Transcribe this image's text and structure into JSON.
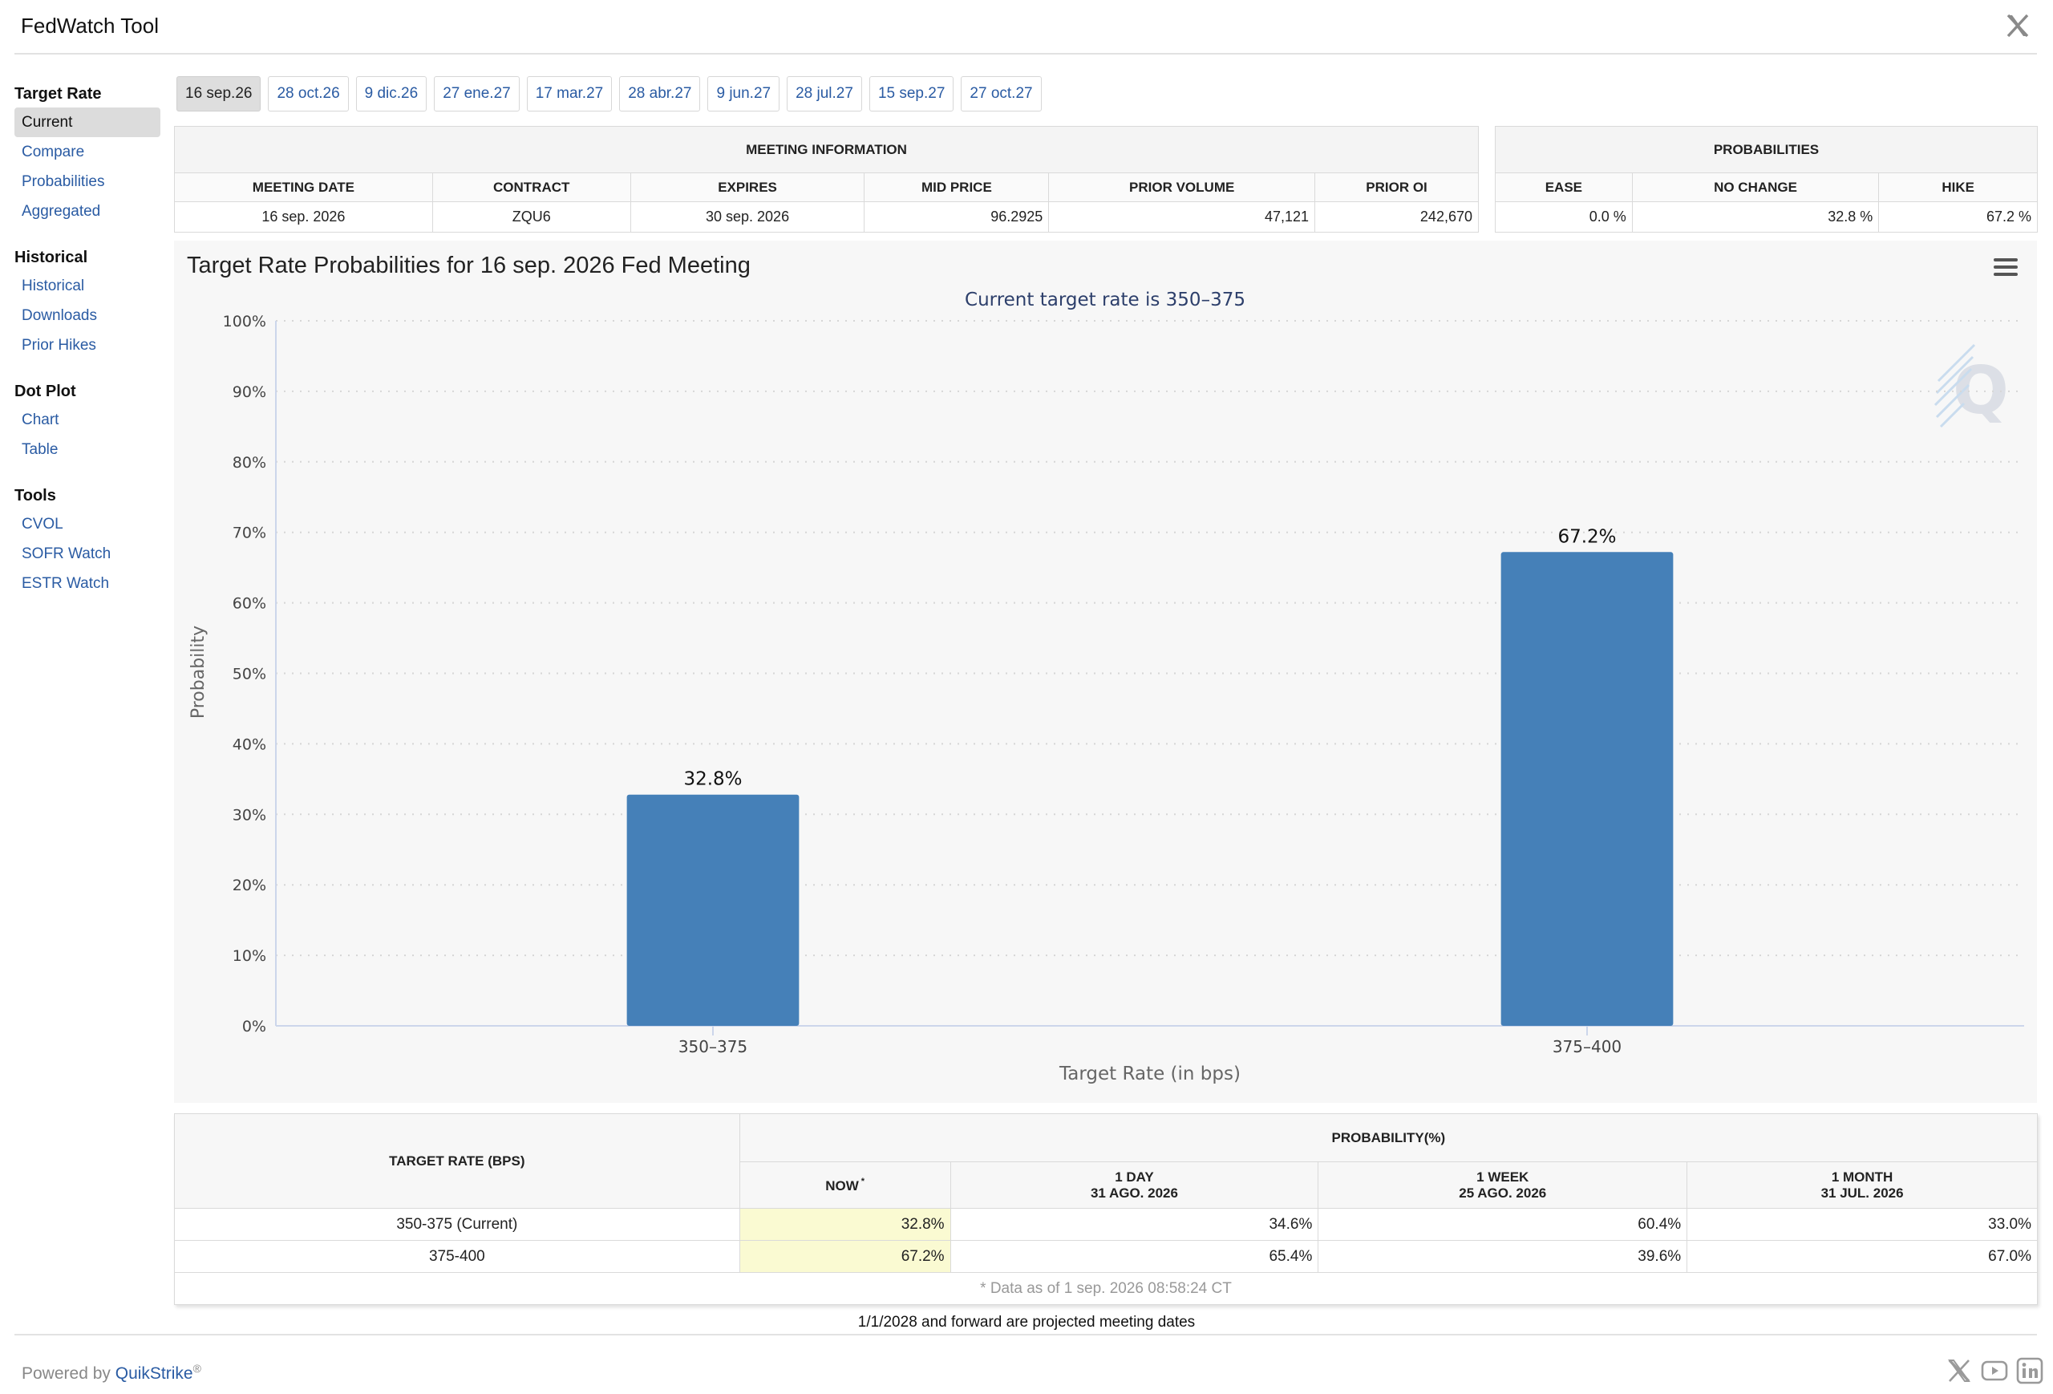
{
  "app": {
    "title": "FedWatch Tool"
  },
  "sidebar": {
    "groups": [
      {
        "title": "Target Rate",
        "items": [
          "Current",
          "Compare",
          "Probabilities",
          "Aggregated"
        ]
      },
      {
        "title": "Historical",
        "items": [
          "Historical",
          "Downloads",
          "Prior Hikes"
        ]
      },
      {
        "title": "Dot Plot",
        "items": [
          "Chart",
          "Table"
        ]
      },
      {
        "title": "Tools",
        "items": [
          "CVOL",
          "SOFR Watch",
          "ESTR Watch"
        ]
      }
    ],
    "active_item": "Current"
  },
  "tabs": [
    "16 sep.26",
    "28 oct.26",
    "9 dic.26",
    "27 ene.27",
    "17 mar.27",
    "28 abr.27",
    "9 jun.27",
    "28 jul.27",
    "15 sep.27",
    "27 oct.27"
  ],
  "meeting_info": {
    "title": "MEETING INFORMATION",
    "headers": [
      "MEETING DATE",
      "CONTRACT",
      "EXPIRES",
      "MID PRICE",
      "PRIOR VOLUME",
      "PRIOR OI"
    ],
    "values": [
      "16 sep. 2026",
      "ZQU6",
      "30 sep. 2026",
      "96.2925",
      "47,121",
      "242,670"
    ]
  },
  "probabilities": {
    "title": "PROBABILITIES",
    "headers": [
      "EASE",
      "NO CHANGE",
      "HIKE"
    ],
    "values": [
      "0.0 %",
      "32.8 %",
      "67.2 %"
    ]
  },
  "chart_data": {
    "type": "bar",
    "title": "Target Rate Probabilities for 16 sep. 2026 Fed Meeting",
    "subtitle": "Current target rate is 350–375",
    "categories": [
      "350–375",
      "375–400"
    ],
    "values": [
      32.8,
      67.2
    ],
    "data_labels": [
      "32.8%",
      "67.2%"
    ],
    "xlabel": "Target Rate (in bps)",
    "ylabel": "Probability",
    "ylim": [
      0,
      100
    ],
    "yticks": [
      "0%",
      "10%",
      "20%",
      "30%",
      "40%",
      "50%",
      "60%",
      "70%",
      "80%",
      "90%",
      "100%"
    ],
    "grid": true,
    "bar_color": "#4580b8",
    "watermark": "Q"
  },
  "history": {
    "col_target": "TARGET RATE (BPS)",
    "col_prob": "PROBABILITY(%)",
    "now": "NOW",
    "now_mark": "*",
    "periods": [
      {
        "label": "1 DAY",
        "date": "31 AGO. 2026"
      },
      {
        "label": "1 WEEK",
        "date": "25 AGO. 2026"
      },
      {
        "label": "1 MONTH",
        "date": "31 JUL. 2026"
      }
    ],
    "rows": [
      {
        "rate": "350-375 (Current)",
        "values": [
          "32.8%",
          "34.6%",
          "60.4%",
          "33.0%"
        ]
      },
      {
        "rate": "375-400",
        "values": [
          "67.2%",
          "65.4%",
          "39.6%",
          "67.0%"
        ]
      }
    ],
    "note": "* Data as of 1 sep. 2026 08:58:24 CT"
  },
  "footer": {
    "projected": "1/1/2028 and forward are projected meeting dates",
    "powered": "Powered by",
    "brand": "QuikStrike",
    "reg": "®"
  }
}
